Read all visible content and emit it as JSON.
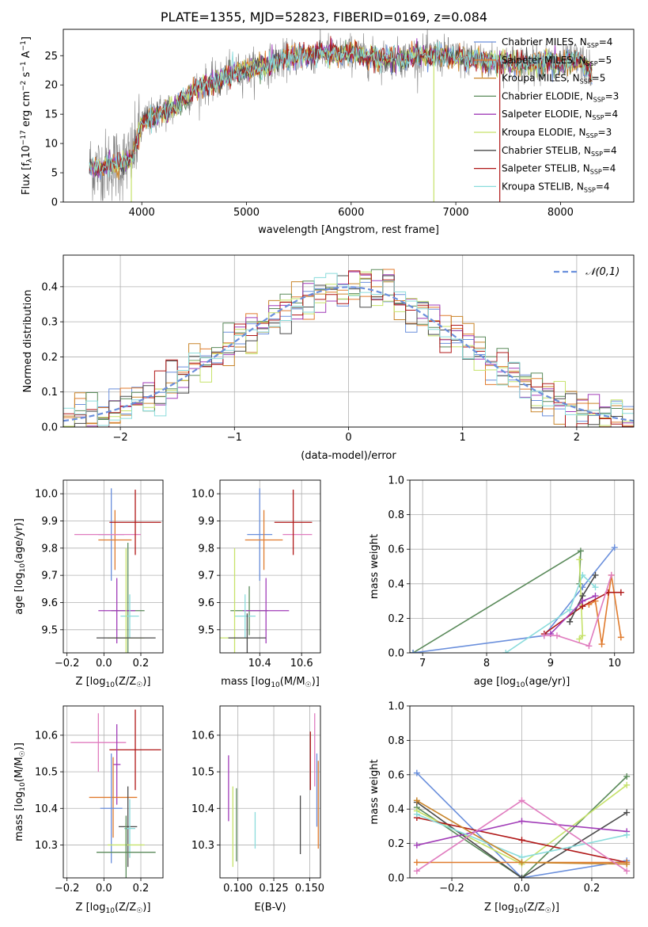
{
  "title": "PLATE=1355, MJD=52823, FIBERID=0169, z=0.084",
  "colors": {
    "chabrier_miles": "#6a8fdc",
    "salpeter_miles": "#e07b2e",
    "kroupa_miles": "#c9852a",
    "chabrier_elodie": "#5a8a5a",
    "salpeter_elodie": "#a13cb8",
    "kroupa_elodie": "#c6e26a",
    "chabrier_stelib": "#4a4a4a",
    "salpeter_stelib": "#b01818",
    "kroupa_stelib": "#8adcdc",
    "gaussian": "#6a8fdc",
    "data_gray": "#808080",
    "pink": "#e07cbf"
  },
  "chart_data": [
    {
      "id": "spectrum",
      "type": "line",
      "xlabel": "wavelength [Angstrom, rest frame]",
      "ylabel_text": "Flux [f",
      "ylabel_sub": "λ",
      "ylabel_rest": "10",
      "ylabel_exp1": "−17",
      "ylabel_mid": " erg cm",
      "ylabel_exp2": "−2",
      "ylabel_mid2": " s",
      "ylabel_exp3": "−1",
      "ylabel_end": " A",
      "ylabel_exp4": "−1",
      "ylabel_close": "]",
      "xlim": [
        3250,
        8700
      ],
      "ylim": [
        0,
        29.5
      ],
      "xticks": [
        4000,
        5000,
        6000,
        7000,
        8000
      ],
      "yticks": [
        0,
        5,
        10,
        15,
        20,
        25
      ],
      "grid": false,
      "legend_position": "top-right",
      "legend": [
        {
          "base": "Chabrier MILES, N",
          "sub": "SSP",
          "tail": "=4",
          "color_key": "chabrier_miles"
        },
        {
          "base": "Salpeter MILES, N",
          "sub": "SSP",
          "tail": "=5",
          "color_key": "salpeter_miles"
        },
        {
          "base": "Kroupa MILES, N",
          "sub": "SSP",
          "tail": "=5",
          "color_key": "kroupa_miles"
        },
        {
          "base": "Chabrier ELODIE, N",
          "sub": "SSP",
          "tail": "=3",
          "color_key": "chabrier_elodie"
        },
        {
          "base": "Salpeter ELODIE, N",
          "sub": "SSP",
          "tail": "=4",
          "color_key": "salpeter_elodie"
        },
        {
          "base": "Kroupa ELODIE, N",
          "sub": "SSP",
          "tail": "=3",
          "color_key": "kroupa_elodie"
        },
        {
          "base": "Chabrier STELIB, N",
          "sub": "SSP",
          "tail": "=4",
          "color_key": "chabrier_stelib"
        },
        {
          "base": "Salpeter STELIB, N",
          "sub": "SSP",
          "tail": "=4",
          "color_key": "salpeter_stelib"
        },
        {
          "base": "Kroupa STELIB, N",
          "sub": "SSP",
          "tail": "=4",
          "color_key": "kroupa_stelib"
        }
      ],
      "model_trend": {
        "x": [
          3500,
          3600,
          3700,
          3800,
          3900,
          3950,
          4000,
          4100,
          4200,
          4300,
          4400,
          4500,
          4600,
          4700,
          4800,
          4900,
          5000,
          5100,
          5200,
          5300,
          5400,
          5500,
          5600,
          5700,
          5800,
          5900,
          6000,
          6100,
          6200,
          6300,
          6400,
          6500,
          6600,
          6700,
          6800,
          6900,
          7000,
          7100,
          7200,
          7300,
          7400,
          7500,
          7600,
          7700,
          7800,
          7900,
          8000,
          8100,
          8200,
          8300
        ],
        "y": [
          6.0,
          5.5,
          6.5,
          6.5,
          7.5,
          10.0,
          13.5,
          14.5,
          15.5,
          16.0,
          17.5,
          19.0,
          20.0,
          20.5,
          21.5,
          22.0,
          22.5,
          23.0,
          23.5,
          24.0,
          24.5,
          25.0,
          25.0,
          25.5,
          25.5,
          25.0,
          25.5,
          25.0,
          24.5,
          24.5,
          24.5,
          24.5,
          25.0,
          25.0,
          25.0,
          25.0,
          24.5,
          24.5,
          24.5,
          24.0,
          24.0,
          24.0,
          23.5,
          23.5,
          24.0,
          24.0,
          23.5,
          24.0,
          24.0,
          22.0
        ]
      },
      "drops": [
        {
          "x": 3900,
          "y": 0,
          "color_key": "kroupa_elodie"
        },
        {
          "x": 6790,
          "y": 0,
          "color_key": "kroupa_elodie"
        },
        {
          "x": 7420,
          "y": 0,
          "color_key": "salpeter_stelib"
        }
      ]
    },
    {
      "id": "residuals",
      "type": "line",
      "xlabel": "(data-model)/error",
      "ylabel": "Normed distribution",
      "xlim": [
        -2.5,
        2.5
      ],
      "ylim": [
        0,
        0.49
      ],
      "xticks": [
        -2,
        -1,
        0,
        1,
        2
      ],
      "xtick_labels": [
        "−2",
        "−1",
        "0",
        "1",
        "2"
      ],
      "yticks": [
        0.0,
        0.1,
        0.2,
        0.3,
        0.4
      ],
      "ytick_labels": [
        "0.0",
        "0.1",
        "0.2",
        "0.3",
        "0.4"
      ],
      "grid": true,
      "legend_position": "top-right",
      "legend_label": "𝒩(0,1)",
      "histogram_bin_width": 0.1
    },
    {
      "id": "age_vs_Z",
      "type": "scatter",
      "xlabel": "Z [log10(Z/Z☉)]",
      "xlabel_parts": [
        "Z [log",
        "10",
        "(Z/Z",
        "☉",
        ")]"
      ],
      "ylabel_parts": [
        "age  [log",
        "10",
        "(age/yr)]"
      ],
      "xlim": [
        -0.22,
        0.32
      ],
      "ylim": [
        9.415,
        10.05
      ],
      "xticks": [
        -0.2,
        0.0,
        0.2
      ],
      "xtick_labels": [
        "−0.2",
        "0.0",
        "0.2"
      ],
      "yticks": [
        9.5,
        9.6,
        9.7,
        9.8,
        9.9,
        10.0
      ],
      "ytick_labels": [
        "9.5",
        "9.6",
        "9.7",
        "9.8",
        "9.9",
        "10.0"
      ],
      "grid": true,
      "points": [
        {
          "x": 0.04,
          "y": 9.85,
          "xerr": 0.07,
          "yerr": 0.17,
          "color_key": "chabrier_miles"
        },
        {
          "x": 0.06,
          "y": 9.83,
          "xerr": 0.09,
          "yerr": 0.11,
          "color_key": "salpeter_miles"
        },
        {
          "x": 0.02,
          "y": 9.85,
          "xerr": 0.18,
          "yerr": 0.0,
          "color_key": "pink"
        },
        {
          "x": 0.17,
          "y": 9.895,
          "xerr": 0.14,
          "yerr": 0.12,
          "color_key": "salpeter_stelib"
        },
        {
          "x": 0.13,
          "y": 9.57,
          "xerr": 0.09,
          "yerr": 0.25,
          "color_key": "chabrier_elodie"
        },
        {
          "x": 0.07,
          "y": 9.57,
          "xerr": 0.1,
          "yerr": 0.12,
          "color_key": "salpeter_elodie"
        },
        {
          "x": 0.14,
          "y": 9.55,
          "xerr": 0.05,
          "yerr": 0.08,
          "color_key": "kroupa_stelib"
        },
        {
          "x": 0.12,
          "y": 9.47,
          "xerr": 0.1,
          "yerr": 0.33,
          "color_key": "kroupa_elodie"
        },
        {
          "x": 0.12,
          "y": 9.47,
          "xerr": 0.16,
          "yerr": 0.0,
          "color_key": "chabrier_stelib"
        }
      ]
    },
    {
      "id": "age_vs_mass",
      "type": "scatter",
      "xlabel_parts": [
        "mass [log",
        "10",
        "(M/M",
        "☉",
        ")]"
      ],
      "xlim": [
        10.21,
        10.69
      ],
      "ylim": [
        9.415,
        10.05
      ],
      "xticks": [
        10.4,
        10.6
      ],
      "xtick_labels": [
        "10.4",
        "10.6"
      ],
      "yticks": [
        9.5,
        9.6,
        9.7,
        9.8,
        9.9,
        10.0
      ],
      "ytick_labels": [
        "9.5",
        "9.6",
        "9.7",
        "9.8",
        "9.9",
        "10.0"
      ],
      "grid": true,
      "points": [
        {
          "x": 10.4,
          "y": 9.85,
          "xerr": 0.06,
          "yerr": 0.17,
          "color_key": "chabrier_miles"
        },
        {
          "x": 10.42,
          "y": 9.83,
          "xerr": 0.09,
          "yerr": 0.11,
          "color_key": "salpeter_miles"
        },
        {
          "x": 10.58,
          "y": 9.85,
          "xerr": 0.07,
          "yerr": 0.0,
          "color_key": "pink"
        },
        {
          "x": 10.56,
          "y": 9.895,
          "xerr": 0.09,
          "yerr": 0.12,
          "color_key": "salpeter_stelib"
        },
        {
          "x": 10.35,
          "y": 9.57,
          "xerr": 0.09,
          "yerr": 0.09,
          "color_key": "chabrier_elodie"
        },
        {
          "x": 10.43,
          "y": 9.57,
          "xerr": 0.11,
          "yerr": 0.12,
          "color_key": "salpeter_elodie"
        },
        {
          "x": 10.33,
          "y": 9.55,
          "xerr": 0.05,
          "yerr": 0.08,
          "color_key": "kroupa_stelib"
        },
        {
          "x": 10.28,
          "y": 9.47,
          "xerr": 0.07,
          "yerr": 0.33,
          "color_key": "kroupa_elodie"
        },
        {
          "x": 10.34,
          "y": 9.47,
          "xerr": 0.09,
          "yerr": 0.09,
          "color_key": "chabrier_stelib"
        }
      ]
    },
    {
      "id": "massweight_vs_age",
      "type": "line",
      "xlabel_parts": [
        "age  [log",
        "10",
        "(age/yr)]"
      ],
      "ylabel": "mass weight",
      "xlim": [
        6.8,
        10.3
      ],
      "ylim": [
        0,
        1.0
      ],
      "xticks": [
        7,
        8,
        9,
        10
      ],
      "xtick_labels": [
        "7",
        "8",
        "9",
        "10"
      ],
      "yticks": [
        0.0,
        0.2,
        0.4,
        0.6,
        0.8,
        1.0
      ],
      "ytick_labels": [
        "0.0",
        "0.2",
        "0.4",
        "0.6",
        "0.8",
        "1.0"
      ],
      "grid": true,
      "series": [
        {
          "color_key": "chabrier_elodie",
          "x": [
            6.85,
            9.47,
            9.45
          ],
          "y": [
            0.0,
            0.59,
            0.4
          ]
        },
        {
          "color_key": "chabrier_miles",
          "x": [
            6.85,
            8.9,
            9.5,
            10.0
          ],
          "y": [
            0.0,
            0.1,
            0.38,
            0.61
          ]
        },
        {
          "color_key": "kroupa_stelib",
          "x": [
            8.3,
            9.3,
            9.5,
            9.7
          ],
          "y": [
            0.0,
            0.25,
            0.45,
            0.38
          ]
        },
        {
          "color_key": "kroupa_elodie",
          "x": [
            9.45,
            9.5,
            9.45
          ],
          "y": [
            0.54,
            0.1,
            0.08
          ]
        },
        {
          "color_key": "salpeter_miles",
          "x": [
            9.6,
            9.7,
            9.8,
            9.95,
            10.1
          ],
          "y": [
            0.28,
            0.3,
            0.05,
            0.45,
            0.09
          ]
        },
        {
          "color_key": "salpeter_stelib",
          "x": [
            8.9,
            9.5,
            9.9,
            10.1
          ],
          "y": [
            0.11,
            0.27,
            0.35,
            0.35
          ]
        },
        {
          "color_key": "chabrier_stelib",
          "x": [
            9.3,
            9.5,
            9.7
          ],
          "y": [
            0.18,
            0.33,
            0.45
          ]
        },
        {
          "color_key": "salpeter_elodie",
          "x": [
            9.0,
            9.5,
            9.7
          ],
          "y": [
            0.11,
            0.3,
            0.33
          ]
        },
        {
          "color_key": "pink",
          "x": [
            8.9,
            9.1,
            9.6,
            9.95
          ],
          "y": [
            0.1,
            0.1,
            0.04,
            0.45
          ]
        }
      ]
    },
    {
      "id": "mass_vs_Z",
      "type": "scatter",
      "xlabel_parts": [
        "Z [log",
        "10",
        "(Z/Z",
        "☉",
        ")]"
      ],
      "ylabel_parts": [
        "mass [log",
        "10",
        "(M/M",
        "☉",
        ")]"
      ],
      "xlim": [
        -0.22,
        0.32
      ],
      "ylim": [
        10.21,
        10.68
      ],
      "xticks": [
        -0.2,
        0.0,
        0.2
      ],
      "xtick_labels": [
        "−0.2",
        "0.0",
        "0.2"
      ],
      "yticks": [
        10.3,
        10.4,
        10.5,
        10.6
      ],
      "ytick_labels": [
        "10.3",
        "10.4",
        "10.5",
        "10.6"
      ],
      "grid": true,
      "points": [
        {
          "x": -0.03,
          "y": 10.58,
          "xerr": 0.15,
          "yerr": 0.08,
          "color_key": "pink"
        },
        {
          "x": 0.17,
          "y": 10.56,
          "xerr": 0.14,
          "yerr": 0.11,
          "color_key": "salpeter_stelib"
        },
        {
          "x": 0.07,
          "y": 10.52,
          "xerr": 0.02,
          "yerr": 0.11,
          "color_key": "salpeter_elodie"
        },
        {
          "x": 0.05,
          "y": 10.43,
          "xerr": 0.13,
          "yerr": 0.11,
          "color_key": "salpeter_miles"
        },
        {
          "x": 0.04,
          "y": 10.4,
          "xerr": 0.06,
          "yerr": 0.15,
          "color_key": "chabrier_miles"
        },
        {
          "x": 0.13,
          "y": 10.35,
          "xerr": 0.05,
          "yerr": 0.11,
          "color_key": "chabrier_stelib"
        },
        {
          "x": 0.14,
          "y": 10.345,
          "xerr": 0.03,
          "yerr": 0.08,
          "color_key": "kroupa_stelib"
        },
        {
          "x": 0.12,
          "y": 10.3,
          "xerr": 0.1,
          "yerr": 0.06,
          "color_key": "kroupa_elodie"
        },
        {
          "x": 0.12,
          "y": 10.28,
          "xerr": 0.16,
          "yerr": 0.1,
          "color_key": "chabrier_elodie"
        }
      ]
    },
    {
      "id": "mass_vs_ebv",
      "type": "scatter",
      "xlabel": "E(B-V)",
      "xlim": [
        0.0875,
        0.1575
      ],
      "ylim": [
        10.21,
        10.68
      ],
      "xticks": [
        0.1,
        0.125,
        0.15
      ],
      "xtick_labels": [
        "0.100",
        "0.125",
        "0.150"
      ],
      "yticks": [
        10.3,
        10.4,
        10.5,
        10.6
      ],
      "ytick_labels": [
        "10.3",
        "10.4",
        "10.5",
        "10.6"
      ],
      "grid": true,
      "points": [
        {
          "x": 0.0935,
          "y": 10.455,
          "yerr": 0.09,
          "color_key": "salpeter_elodie"
        },
        {
          "x": 0.0965,
          "y": 10.35,
          "yerr": 0.11,
          "color_key": "kroupa_elodie"
        },
        {
          "x": 0.099,
          "y": 10.355,
          "yerr": 0.1,
          "color_key": "chabrier_elodie"
        },
        {
          "x": 0.112,
          "y": 10.34,
          "yerr": 0.05,
          "color_key": "kroupa_stelib"
        },
        {
          "x": 0.1435,
          "y": 10.355,
          "yerr": 0.08,
          "color_key": "chabrier_stelib"
        },
        {
          "x": 0.1505,
          "y": 10.53,
          "yerr": 0.08,
          "color_key": "salpeter_stelib"
        },
        {
          "x": 0.1535,
          "y": 10.56,
          "yerr": 0.1,
          "color_key": "pink"
        },
        {
          "x": 0.156,
          "y": 10.41,
          "yerr": 0.12,
          "color_key": "salpeter_miles"
        },
        {
          "x": 0.155,
          "y": 10.45,
          "yerr": 0.1,
          "color_key": "chabrier_miles"
        }
      ]
    },
    {
      "id": "massweight_vs_Z",
      "type": "line",
      "xlabel_parts": [
        "Z [log",
        "10",
        "(Z/Z",
        "☉",
        ")]"
      ],
      "ylabel": "mass weight",
      "xlim": [
        -0.32,
        0.32
      ],
      "ylim": [
        0,
        1.0
      ],
      "xticks": [
        -0.2,
        0.0,
        0.2
      ],
      "xtick_labels": [
        "−0.2",
        "0.0",
        "0.2"
      ],
      "yticks": [
        0.0,
        0.2,
        0.4,
        0.6,
        0.8,
        1.0
      ],
      "ytick_labels": [
        "0.0",
        "0.2",
        "0.4",
        "0.6",
        "0.8",
        "1.0"
      ],
      "grid": true,
      "series": [
        {
          "color_key": "chabrier_miles",
          "x": [
            -0.3,
            0.0,
            0.3
          ],
          "y": [
            0.61,
            0.0,
            0.1
          ]
        },
        {
          "color_key": "chabrier_elodie",
          "x": [
            -0.3,
            0.0,
            0.3
          ],
          "y": [
            0.41,
            0.0,
            0.59
          ]
        },
        {
          "color_key": "kroupa_elodie",
          "x": [
            -0.3,
            0.0,
            0.3
          ],
          "y": [
            0.39,
            0.08,
            0.54
          ]
        },
        {
          "color_key": "chabrier_stelib",
          "x": [
            -0.3,
            0.0,
            0.3
          ],
          "y": [
            0.44,
            0.0,
            0.38
          ]
        },
        {
          "color_key": "salpeter_stelib",
          "x": [
            -0.3,
            0.0,
            0.3
          ],
          "y": [
            0.35,
            0.22,
            0.09
          ]
        },
        {
          "color_key": "salpeter_elodie",
          "x": [
            -0.3,
            0.0,
            0.3
          ],
          "y": [
            0.19,
            0.33,
            0.27
          ]
        },
        {
          "color_key": "kroupa_stelib",
          "x": [
            -0.3,
            0.0,
            0.3
          ],
          "y": [
            0.37,
            0.12,
            0.25
          ]
        },
        {
          "color_key": "salpeter_miles",
          "x": [
            -0.3,
            0.0,
            0.3
          ],
          "y": [
            0.09,
            0.09,
            0.09
          ]
        },
        {
          "color_key": "kroupa_miles",
          "x": [
            -0.3,
            0.0,
            0.3
          ],
          "y": [
            0.45,
            0.09,
            0.08
          ]
        },
        {
          "color_key": "pink",
          "x": [
            -0.3,
            0.0,
            0.3
          ],
          "y": [
            0.04,
            0.45,
            0.04
          ]
        }
      ]
    }
  ]
}
